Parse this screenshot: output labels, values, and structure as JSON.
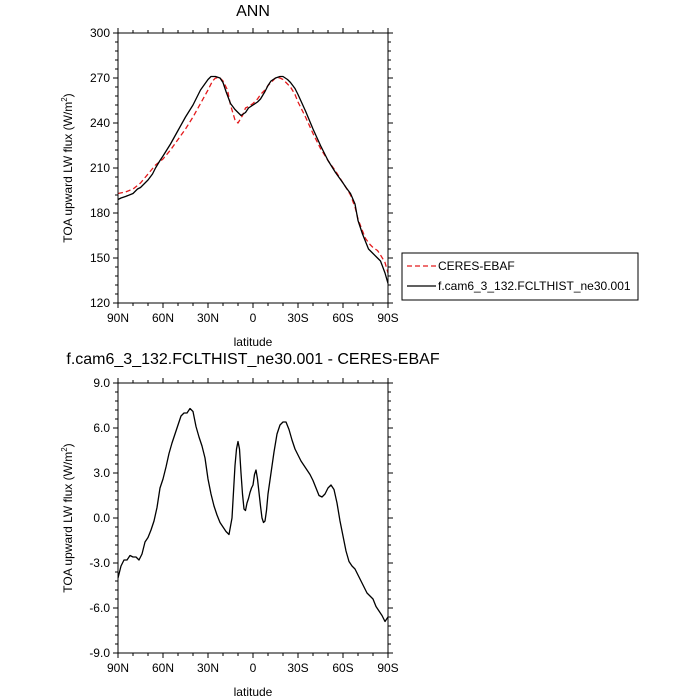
{
  "chart_data": [
    {
      "type": "line",
      "title": "ANN",
      "xlabel": "latitude",
      "ylabel": "TOA upward LW flux (W/m²)",
      "xlim": [
        90,
        -90
      ],
      "ylim": [
        120,
        300
      ],
      "x_ticks": [
        90,
        60,
        30,
        0,
        -30,
        -60,
        -90
      ],
      "x_tick_labels": [
        "90N",
        "60N",
        "30N",
        "0",
        "30S",
        "60S",
        "90S"
      ],
      "y_ticks": [
        120,
        150,
        180,
        210,
        240,
        270,
        300
      ],
      "y_tick_labels": [
        "120",
        "150",
        "180",
        "210",
        "240",
        "270",
        "300"
      ],
      "legend_position": "right",
      "series": [
        {
          "name": "CERES-EBAF",
          "color": "#e41a1c",
          "dash": "dashed",
          "x": [
            90,
            85,
            80,
            75,
            70,
            65,
            60,
            55,
            50,
            45,
            40,
            35,
            30,
            27,
            25,
            22,
            20,
            17,
            15,
            12,
            10,
            7,
            5,
            3,
            0,
            -3,
            -5,
            -8,
            -10,
            -13,
            -15,
            -18,
            -20,
            -22,
            -25,
            -28,
            -30,
            -35,
            -40,
            -45,
            -50,
            -55,
            -60,
            -62,
            -65,
            -68,
            -70,
            -73,
            -75,
            -78,
            -80,
            -83,
            -85,
            -88,
            -90
          ],
          "y": [
            193,
            194,
            196,
            200,
            206,
            212,
            216,
            222,
            229,
            236,
            244,
            253,
            262,
            268,
            270,
            270,
            268,
            262,
            252,
            242,
            240,
            245,
            250,
            251,
            253,
            256,
            259,
            262,
            265,
            268,
            270,
            270,
            269,
            267,
            264,
            259,
            254,
            244,
            233,
            223,
            215,
            208,
            200,
            197,
            192,
            184,
            176,
            168,
            163,
            159,
            157,
            155,
            152,
            147,
            140
          ]
        },
        {
          "name": "f.cam6_3_132.FCLTHIST_ne30.001",
          "color": "#000000",
          "dash": "solid",
          "x": [
            90,
            88,
            85,
            80,
            77,
            75,
            72,
            70,
            67,
            65,
            62,
            60,
            55,
            50,
            45,
            40,
            35,
            30,
            28,
            25,
            22,
            20,
            18,
            15,
            12,
            10,
            8,
            5,
            3,
            0,
            -3,
            -5,
            -8,
            -10,
            -12,
            -15,
            -18,
            -20,
            -23,
            -25,
            -28,
            -30,
            -35,
            -40,
            -45,
            -50,
            -55,
            -60,
            -62,
            -65,
            -68,
            -70,
            -73,
            -75,
            -77,
            -80,
            -83,
            -85,
            -88,
            -90
          ],
          "y": [
            189,
            190,
            191,
            193,
            196,
            197,
            200,
            202,
            206,
            210,
            215,
            218,
            226,
            235,
            244,
            252,
            262,
            269,
            271,
            271,
            270,
            267,
            261,
            253,
            249,
            247,
            245,
            247,
            250,
            252,
            254,
            256,
            261,
            265,
            268,
            270,
            271,
            271,
            269,
            267,
            263,
            259,
            248,
            236,
            225,
            215,
            207,
            200,
            197,
            193,
            186,
            175,
            166,
            161,
            156,
            153,
            150,
            148,
            140,
            133
          ]
        }
      ]
    },
    {
      "type": "line",
      "title": "f.cam6_3_132.FCLTHIST_ne30.001 - CERES-EBAF",
      "xlabel": "latitude",
      "ylabel": "TOA upward LW flux (W/m²)",
      "xlim": [
        90,
        -90
      ],
      "ylim": [
        -9,
        9
      ],
      "x_ticks": [
        90,
        60,
        30,
        0,
        -30,
        -60,
        -90
      ],
      "x_tick_labels": [
        "90N",
        "60N",
        "30N",
        "0",
        "30S",
        "60S",
        "90S"
      ],
      "y_ticks": [
        -9,
        -6,
        -3,
        0,
        3,
        6,
        9
      ],
      "y_tick_labels": [
        "-9.0",
        "-6.0",
        "-3.0",
        "0.0",
        "3.0",
        "6.0",
        "9.0"
      ],
      "series": [
        {
          "color": "#000000",
          "dash": "solid",
          "x": [
            90,
            88,
            86,
            84,
            82,
            80,
            78,
            76,
            74,
            72,
            70,
            68,
            66,
            64,
            62,
            60,
            58,
            56,
            54,
            52,
            50,
            48,
            46,
            44,
            42,
            40,
            38,
            36,
            34,
            32,
            30,
            28,
            26,
            24,
            22,
            20,
            18,
            16,
            14,
            12,
            11,
            10,
            9,
            8,
            7,
            6,
            5,
            4,
            3,
            2,
            1,
            0,
            -1,
            -2,
            -3,
            -4,
            -5,
            -6,
            -7,
            -8,
            -9,
            -10,
            -12,
            -14,
            -16,
            -18,
            -20,
            -22,
            -24,
            -26,
            -28,
            -30,
            -32,
            -34,
            -36,
            -38,
            -40,
            -42,
            -44,
            -46,
            -48,
            -50,
            -52,
            -54,
            -56,
            -58,
            -60,
            -62,
            -64,
            -66,
            -68,
            -70,
            -72,
            -74,
            -76,
            -78,
            -80,
            -82,
            -84,
            -86,
            -88,
            -90
          ],
          "y": [
            -4.0,
            -3.2,
            -2.8,
            -2.8,
            -2.5,
            -2.6,
            -2.6,
            -2.8,
            -2.4,
            -1.6,
            -1.3,
            -0.8,
            -0.2,
            0.7,
            2.0,
            2.6,
            3.4,
            4.3,
            5.0,
            5.6,
            6.2,
            6.8,
            7.0,
            7.0,
            7.3,
            7.1,
            6.1,
            5.4,
            4.8,
            4.0,
            2.6,
            1.6,
            0.8,
            0.2,
            -0.3,
            -0.6,
            -0.9,
            -1.1,
            0.0,
            3.5,
            4.6,
            5.1,
            4.6,
            3.0,
            1.6,
            0.6,
            0.5,
            1.0,
            1.3,
            1.7,
            2.0,
            2.2,
            2.9,
            3.2,
            2.6,
            1.7,
            0.8,
            0.0,
            -0.3,
            -0.2,
            0.5,
            1.6,
            3.0,
            4.4,
            5.6,
            6.2,
            6.4,
            6.4,
            5.9,
            5.2,
            4.6,
            4.2,
            3.8,
            3.5,
            3.2,
            2.9,
            2.5,
            2.0,
            1.5,
            1.4,
            1.6,
            2.0,
            2.2,
            1.9,
            1.0,
            -0.2,
            -1.2,
            -2.2,
            -2.9,
            -3.2,
            -3.4,
            -3.8,
            -4.2,
            -4.6,
            -5.0,
            -5.2,
            -5.4,
            -5.9,
            -6.2,
            -6.5,
            -6.9,
            -6.6
          ]
        }
      ]
    }
  ]
}
